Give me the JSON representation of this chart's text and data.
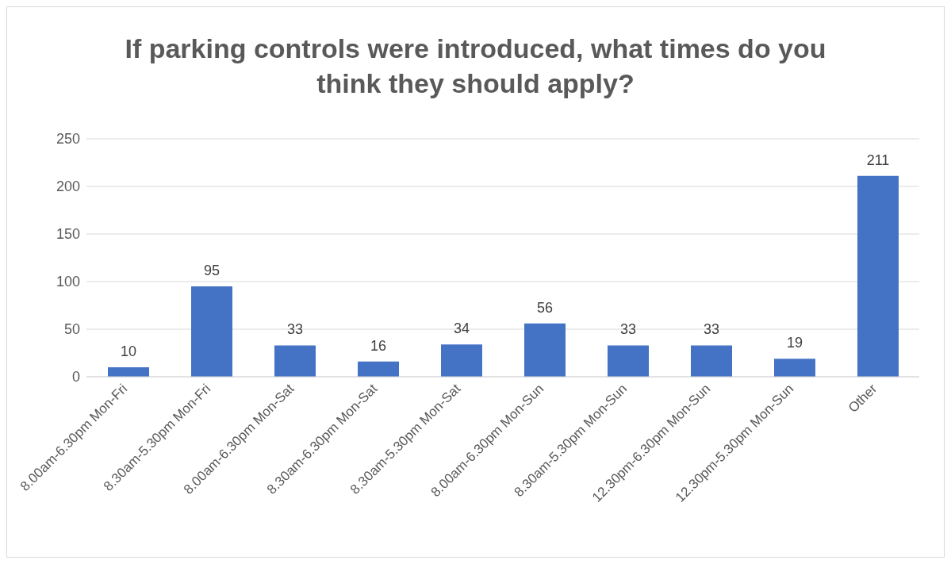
{
  "chart_data": {
    "type": "bar",
    "title": "If parking controls were introduced, what times do you think they should apply?",
    "categories": [
      "8.00am-6.30pm Mon-Fri",
      "8.30am-5.30pm Mon-Fri",
      "8.00am-6.30pm Mon-Sat",
      "8.30am-6.30pm Mon-Sat",
      "8.30am-5.30pm Mon-Sat",
      "8.00am-6.30pm Mon-Sun",
      "8.30am-5.30pm Mon-Sun",
      "12.30pm-6.30pm Mon-Sun",
      "12.30pm-5.30pm Mon-Sun",
      "Other"
    ],
    "values": [
      10,
      95,
      33,
      16,
      34,
      56,
      33,
      33,
      19,
      211
    ],
    "color": "#4472c4",
    "ylim": [
      0,
      250
    ],
    "yticks": [
      0,
      50,
      100,
      150,
      200,
      250
    ],
    "grid": "y",
    "data_labels": true
  }
}
